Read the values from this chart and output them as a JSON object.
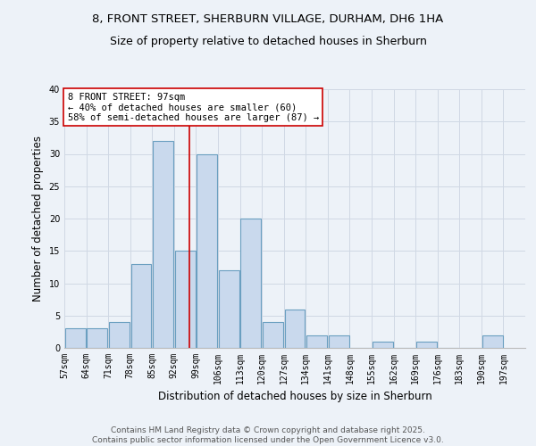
{
  "title1": "8, FRONT STREET, SHERBURN VILLAGE, DURHAM, DH6 1HA",
  "title2": "Size of property relative to detached houses in Sherburn",
  "xlabel": "Distribution of detached houses by size in Sherburn",
  "ylabel": "Number of detached properties",
  "bin_edges": [
    57,
    64,
    71,
    78,
    85,
    92,
    99,
    106,
    113,
    120,
    127,
    134,
    141,
    148,
    155,
    162,
    169,
    176,
    183,
    190,
    197
  ],
  "bar_heights": [
    3,
    3,
    4,
    13,
    32,
    15,
    30,
    12,
    20,
    4,
    6,
    2,
    2,
    0,
    1,
    0,
    1,
    0,
    0,
    2
  ],
  "bar_color": "#c9d9ed",
  "bar_edge_color": "#6a9fc0",
  "bar_linewidth": 0.8,
  "vline_x": 97,
  "vline_color": "#cc0000",
  "vline_linewidth": 1.2,
  "annotation_text": "8 FRONT STREET: 97sqm\n← 40% of detached houses are smaller (60)\n58% of semi-detached houses are larger (87) →",
  "annotation_box_edgecolor": "#cc0000",
  "annotation_box_facecolor": "white",
  "ylim": [
    0,
    40
  ],
  "xlim": [
    57,
    204
  ],
  "yticks": [
    0,
    5,
    10,
    15,
    20,
    25,
    30,
    35,
    40
  ],
  "grid_color": "#d0d8e4",
  "background_color": "#edf2f8",
  "footer_text": "Contains HM Land Registry data © Crown copyright and database right 2025.\nContains public sector information licensed under the Open Government Licence v3.0.",
  "title1_fontsize": 9.5,
  "title2_fontsize": 9.0,
  "axis_label_fontsize": 8.5,
  "tick_fontsize": 7.0,
  "footer_fontsize": 6.5,
  "annotation_fontsize": 7.5
}
